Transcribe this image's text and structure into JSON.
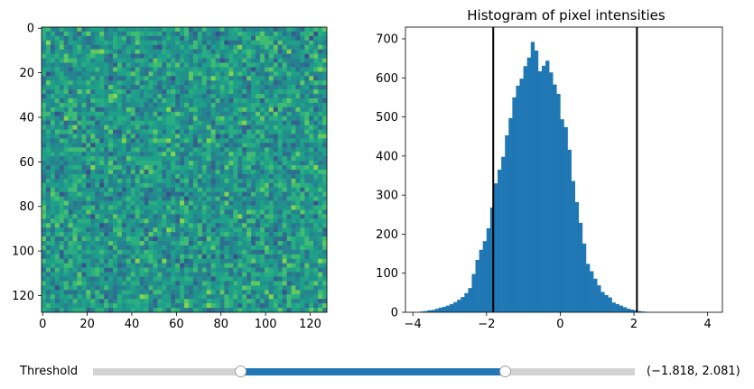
{
  "slider": {
    "label": "Threshold",
    "min": -4,
    "max": 4,
    "low": -1.818,
    "high": 2.081,
    "value_text": "(−1.818, 2.081)",
    "fill_color": "#1f77b4",
    "track_color": "#d3d3d3"
  },
  "chart_data": [
    {
      "type": "heatmap",
      "title": "",
      "colormap": "viridis",
      "x_ticks": [
        0,
        20,
        40,
        60,
        80,
        100,
        120
      ],
      "y_ticks": [
        0,
        20,
        40,
        60,
        80,
        100,
        120
      ],
      "xlim": [
        -0.5,
        127.5
      ],
      "ylim": [
        127.5,
        -0.5
      ],
      "size": [
        128,
        128
      ],
      "y_inverted": true
    },
    {
      "type": "bar",
      "title": "Histogram of pixel intensities",
      "bar_color": "#1f77b4",
      "bin_width": 0.1,
      "bin_start": -3.8,
      "counts": [
        2,
        3,
        5,
        6,
        9,
        12,
        14,
        17,
        21,
        26,
        32,
        39,
        49,
        62,
        98,
        134,
        160,
        182,
        215,
        268,
        330,
        365,
        398,
        453,
        497,
        550,
        580,
        598,
        630,
        652,
        692,
        670,
        617,
        631,
        644,
        614,
        583,
        559,
        494,
        474,
        416,
        336,
        282,
        229,
        176,
        124,
        105,
        86,
        69,
        52,
        44,
        38,
        25,
        21,
        17,
        13,
        9,
        7,
        5,
        3,
        2,
        1
      ],
      "x_ticks": [
        -4,
        -2,
        0,
        2,
        4
      ],
      "y_ticks": [
        0,
        100,
        200,
        300,
        400,
        500,
        600,
        700
      ],
      "xlim": [
        -4.2,
        4.4
      ],
      "ylim": [
        0,
        730
      ],
      "vlines": [
        -1.818,
        2.081
      ],
      "vline_color": "#000000"
    }
  ]
}
